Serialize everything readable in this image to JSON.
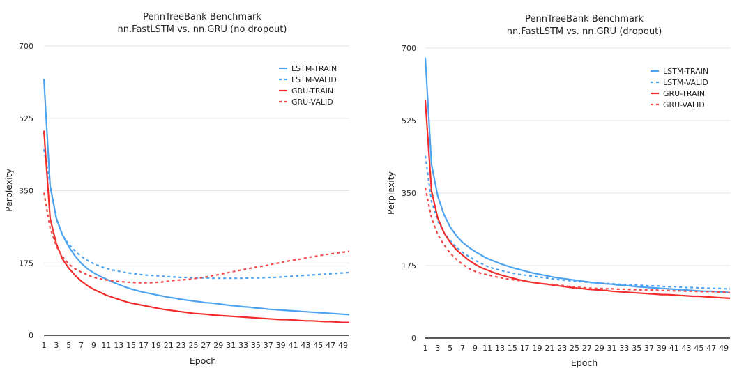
{
  "chart_data": [
    {
      "type": "line",
      "title": "PennTreeBank Benchmark",
      "subtitle": "nn.FastLSTM vs. nn.GRU (no dropout)",
      "xlabel": "Epoch",
      "ylabel": "Perplexity",
      "ylim": [
        0,
        700
      ],
      "yticks": [
        "0",
        "175",
        "350",
        "525",
        "700"
      ],
      "xlim": [
        1,
        50
      ],
      "grid": true,
      "legend": "top-right",
      "series": [
        {
          "name": "LSTM-TRAIN",
          "color": "#4da3f0",
          "dashed": false,
          "values": [
            620,
            361,
            283,
            242,
            214,
            192,
            174,
            161,
            151,
            143,
            136,
            129,
            123,
            117,
            112,
            108,
            104,
            101,
            98,
            95,
            92,
            90,
            87,
            85,
            83,
            81,
            79,
            78,
            76,
            74,
            72,
            71,
            69,
            68,
            66,
            65,
            63,
            62,
            61,
            60,
            59,
            58,
            57,
            56,
            55,
            54,
            53,
            52,
            51,
            50
          ]
        },
        {
          "name": "LSTM-VALID",
          "color": "#4da3f0",
          "dashed": true,
          "values": [
            450,
            365,
            280,
            242,
            220,
            204,
            191,
            181,
            173,
            167,
            162,
            158,
            155,
            152,
            150,
            148,
            146,
            145,
            144,
            143,
            142,
            141,
            140,
            140,
            139,
            139,
            139,
            138,
            138,
            138,
            138,
            138,
            138,
            139,
            139,
            139,
            140,
            140,
            141,
            142,
            143,
            144,
            145,
            146,
            147,
            148,
            149,
            150,
            151,
            152
          ]
        },
        {
          "name": "GRU-TRAIN",
          "color": "#f22b2b",
          "dashed": false,
          "values": [
            495,
            283,
            221,
            184,
            162,
            145,
            131,
            120,
            111,
            104,
            97,
            92,
            87,
            82,
            78,
            75,
            72,
            69,
            66,
            63,
            61,
            59,
            57,
            55,
            53,
            52,
            51,
            49,
            48,
            47,
            46,
            45,
            44,
            43,
            42,
            41,
            40,
            39,
            38,
            38,
            37,
            36,
            35,
            35,
            34,
            33,
            33,
            32,
            31,
            31
          ]
        },
        {
          "name": "GRU-VALID",
          "color": "#f24a4a",
          "dashed": true,
          "values": [
            345,
            260,
            215,
            190,
            172,
            161,
            153,
            146,
            140,
            137,
            134,
            132,
            130,
            129,
            128,
            127,
            127,
            127,
            128,
            129,
            131,
            133,
            134,
            135,
            137,
            139,
            141,
            144,
            147,
            150,
            153,
            156,
            159,
            162,
            165,
            167,
            170,
            173,
            176,
            179,
            182,
            184,
            187,
            190,
            192,
            195,
            197,
            199,
            201,
            203
          ]
        }
      ]
    },
    {
      "type": "line",
      "title": "PennTreeBank Benchmark",
      "subtitle": "nn.FastLSTM vs. nn.GRU (dropout)",
      "xlabel": "Epoch",
      "ylabel": "Perplexity",
      "ylim": [
        0,
        700
      ],
      "yticks": [
        "0",
        "175",
        "350",
        "525",
        "700"
      ],
      "xlim": [
        1,
        50
      ],
      "grid": true,
      "legend": "top-right",
      "series": [
        {
          "name": "LSTM-TRAIN",
          "color": "#4da3f0",
          "dashed": false,
          "values": [
            677,
            419,
            343,
            298,
            268,
            247,
            231,
            219,
            209,
            200,
            192,
            186,
            180,
            175,
            170,
            166,
            162,
            158,
            155,
            152,
            149,
            146,
            144,
            142,
            140,
            138,
            136,
            134,
            133,
            131,
            130,
            128,
            127,
            126,
            124,
            123,
            122,
            121,
            120,
            119,
            118,
            117,
            116,
            115,
            114,
            113,
            113,
            112,
            111,
            110
          ]
        },
        {
          "name": "LSTM-VALID",
          "color": "#4da3f0",
          "dashed": true,
          "values": [
            440,
            330,
            283,
            255,
            235,
            219,
            207,
            197,
            188,
            180,
            173,
            168,
            164,
            160,
            157,
            154,
            152,
            150,
            148,
            146,
            144,
            142,
            140,
            139,
            137,
            136,
            135,
            134,
            133,
            132,
            131,
            130,
            129,
            128,
            128,
            127,
            126,
            126,
            125,
            124,
            124,
            123,
            122,
            122,
            121,
            121,
            120,
            120,
            119,
            119
          ]
        },
        {
          "name": "GRU-TRAIN",
          "color": "#f22b2b",
          "dashed": false,
          "values": [
            574,
            355,
            290,
            254,
            231,
            213,
            200,
            188,
            178,
            170,
            164,
            158,
            153,
            149,
            145,
            141,
            138,
            135,
            133,
            131,
            129,
            127,
            125,
            123,
            121,
            120,
            118,
            117,
            116,
            115,
            113,
            112,
            111,
            110,
            109,
            108,
            107,
            106,
            105,
            105,
            104,
            103,
            102,
            101,
            101,
            100,
            99,
            98,
            97,
            96
          ]
        },
        {
          "name": "GRU-VALID",
          "color": "#f24a4a",
          "dashed": true,
          "values": [
            363,
            290,
            250,
            225,
            205,
            190,
            178,
            168,
            161,
            156,
            153,
            149,
            146,
            143,
            141,
            139,
            137,
            135,
            133,
            131,
            130,
            128,
            127,
            125,
            124,
            122,
            121,
            120,
            120,
            119,
            119,
            118,
            118,
            117,
            117,
            116,
            116,
            116,
            115,
            115,
            114,
            114,
            113,
            113,
            112,
            112,
            112,
            111,
            111,
            110
          ]
        }
      ]
    }
  ]
}
